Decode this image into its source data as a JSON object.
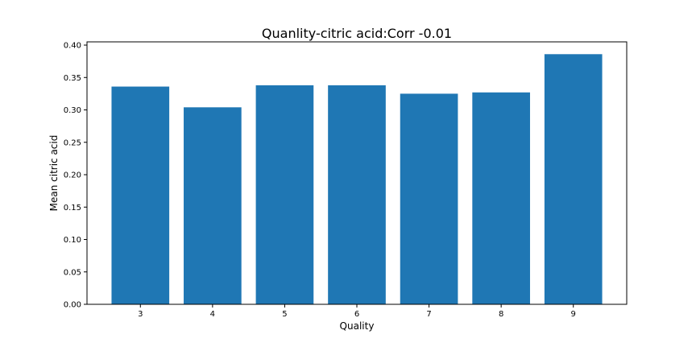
{
  "chart_data": {
    "type": "bar",
    "title": "Quanlity-citric acid:Corr -0.01",
    "xlabel": "Quality",
    "ylabel": "Mean citric acid",
    "categories": [
      "3",
      "4",
      "5",
      "6",
      "7",
      "8",
      "9"
    ],
    "values": [
      0.336,
      0.304,
      0.338,
      0.338,
      0.325,
      0.327,
      0.386
    ],
    "ylim": [
      0,
      0.405
    ],
    "yticks": [
      "0.00",
      "0.05",
      "0.10",
      "0.15",
      "0.20",
      "0.25",
      "0.30",
      "0.35",
      "0.40"
    ],
    "bar_color": "#1f77b4",
    "grid": false,
    "legend": "none"
  }
}
